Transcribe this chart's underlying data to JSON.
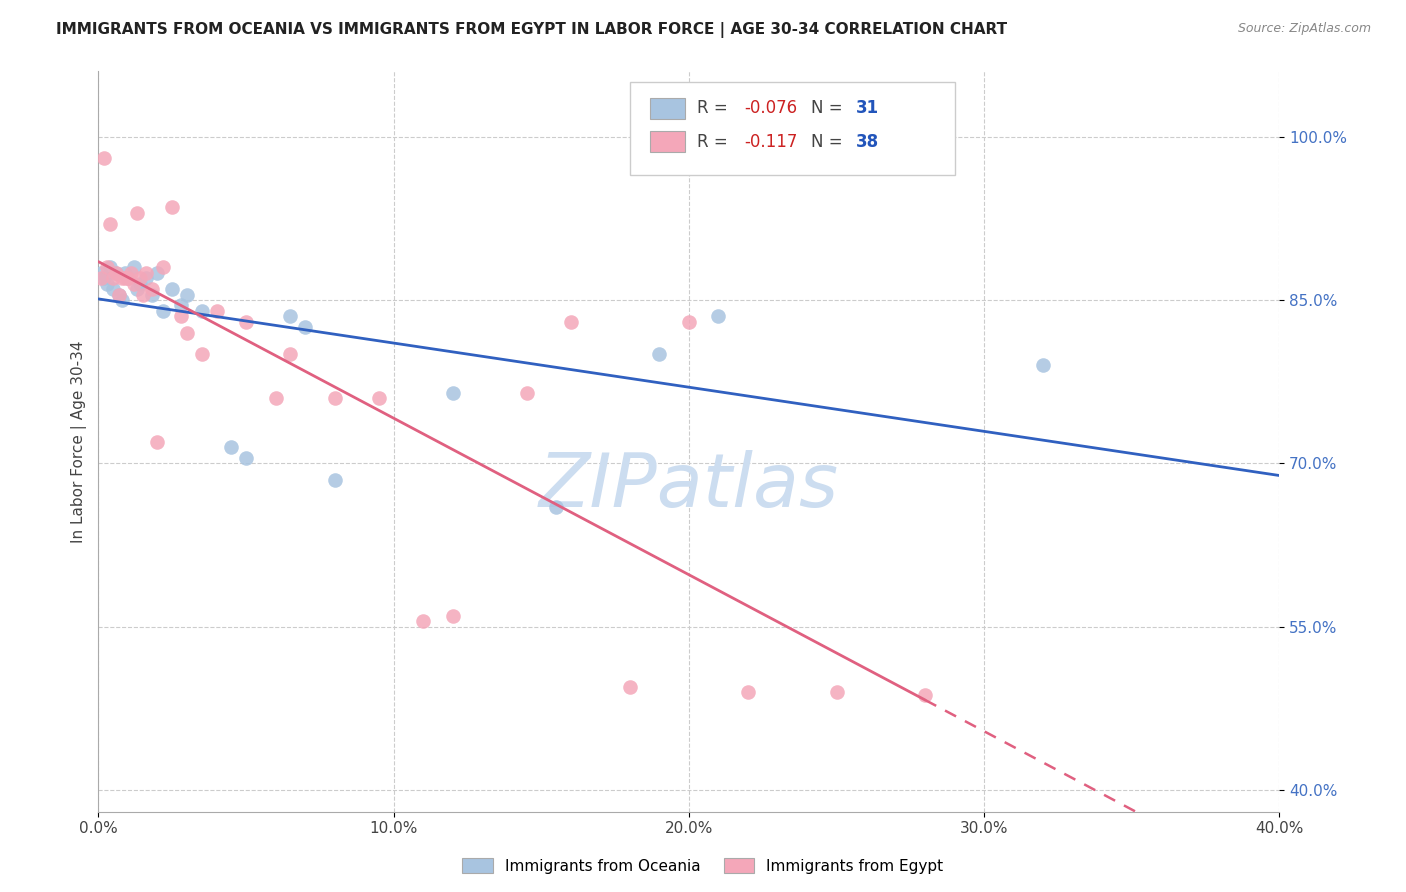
{
  "title": "IMMIGRANTS FROM OCEANIA VS IMMIGRANTS FROM EGYPT IN LABOR FORCE | AGE 30-34 CORRELATION CHART",
  "source": "Source: ZipAtlas.com",
  "ylabel": "In Labor Force | Age 30-34",
  "xmin": 0.0,
  "xmax": 0.4,
  "ymin": 0.38,
  "ymax": 1.06,
  "yticks": [
    0.4,
    0.55,
    0.7,
    0.85,
    1.0
  ],
  "ytick_labels": [
    "40.0%",
    "55.0%",
    "70.0%",
    "85.0%",
    "100.0%"
  ],
  "xticks": [
    0.0,
    0.1,
    0.2,
    0.3,
    0.4
  ],
  "xtick_labels": [
    "0.0%",
    "10.0%",
    "20.0%",
    "30.0%",
    "40.0%"
  ],
  "legend_r_oceania": "-0.076",
  "legend_n_oceania": "31",
  "legend_r_egypt": "-0.117",
  "legend_n_egypt": "38",
  "oceania_color": "#a8c4e0",
  "egypt_color": "#f4a7b9",
  "trendline_oceania_color": "#3060c0",
  "trendline_egypt_color": "#e06080",
  "watermark_color": "#ccddf0",
  "oceania_x": [
    0.001,
    0.002,
    0.003,
    0.004,
    0.005,
    0.006,
    0.007,
    0.008,
    0.009,
    0.01,
    0.012,
    0.013,
    0.014,
    0.016,
    0.018,
    0.02,
    0.022,
    0.025,
    0.028,
    0.03,
    0.035,
    0.045,
    0.05,
    0.065,
    0.07,
    0.08,
    0.12,
    0.155,
    0.19,
    0.21,
    0.32
  ],
  "oceania_y": [
    0.875,
    0.87,
    0.865,
    0.88,
    0.86,
    0.875,
    0.855,
    0.85,
    0.875,
    0.87,
    0.88,
    0.86,
    0.865,
    0.87,
    0.855,
    0.875,
    0.84,
    0.86,
    0.845,
    0.855,
    0.84,
    0.715,
    0.705,
    0.835,
    0.825,
    0.685,
    0.765,
    0.66,
    0.8,
    0.835,
    0.79
  ],
  "egypt_x": [
    0.001,
    0.002,
    0.003,
    0.004,
    0.005,
    0.006,
    0.007,
    0.008,
    0.009,
    0.01,
    0.011,
    0.012,
    0.013,
    0.014,
    0.015,
    0.016,
    0.018,
    0.02,
    0.022,
    0.025,
    0.028,
    0.03,
    0.035,
    0.04,
    0.05,
    0.06,
    0.065,
    0.08,
    0.095,
    0.11,
    0.12,
    0.145,
    0.16,
    0.18,
    0.2,
    0.22,
    0.25,
    0.28
  ],
  "egypt_y": [
    0.87,
    0.98,
    0.88,
    0.92,
    0.87,
    0.875,
    0.855,
    0.87,
    0.87,
    0.87,
    0.875,
    0.865,
    0.93,
    0.87,
    0.855,
    0.875,
    0.86,
    0.72,
    0.88,
    0.935,
    0.835,
    0.82,
    0.8,
    0.84,
    0.83,
    0.76,
    0.8,
    0.76,
    0.76,
    0.555,
    0.56,
    0.765,
    0.83,
    0.495,
    0.83,
    0.49,
    0.49,
    0.487
  ]
}
